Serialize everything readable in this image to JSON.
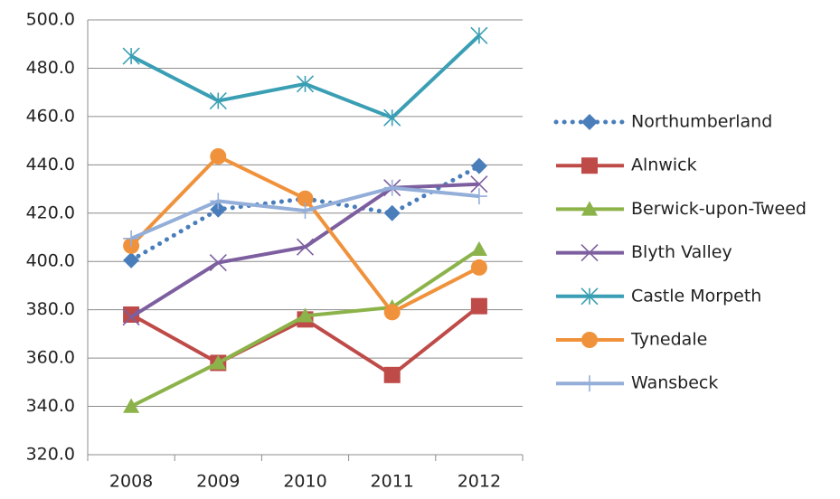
{
  "chart_data": {
    "type": "line",
    "categories": [
      "2008",
      "2009",
      "2010",
      "2011",
      "2012"
    ],
    "ylim": [
      320,
      500
    ],
    "yticks": [
      {
        "value": 320,
        "label": "320.0"
      },
      {
        "value": 340,
        "label": "340.0"
      },
      {
        "value": 360,
        "label": "360.0"
      },
      {
        "value": 380,
        "label": "380.0"
      },
      {
        "value": 400,
        "label": "400.0"
      },
      {
        "value": 420,
        "label": "420.0"
      },
      {
        "value": 440,
        "label": "440.0"
      },
      {
        "value": 460,
        "label": "460.0"
      },
      {
        "value": 480,
        "label": "480.0"
      },
      {
        "value": 500,
        "label": "500.0"
      }
    ],
    "grid": true,
    "legend": "right",
    "series": [
      {
        "name": "Northumberland",
        "color": "#4a7ebb",
        "marker": "diamond",
        "line_style": "dotted",
        "values": [
          400.5,
          421.5,
          426,
          420,
          439.5
        ]
      },
      {
        "name": "Alnwick",
        "color": "#be4b48",
        "marker": "square",
        "values": [
          378,
          358,
          376,
          353,
          381.5
        ]
      },
      {
        "name": "Berwick-upon-Tweed",
        "color": "#8cb34a",
        "marker": "triangle",
        "values": [
          340,
          358,
          377.5,
          381,
          405
        ]
      },
      {
        "name": "Blyth Valley",
        "color": "#7d5fa0",
        "marker": "x",
        "values": [
          377,
          399.5,
          406,
          430.5,
          432
        ]
      },
      {
        "name": "Castle Morpeth",
        "color": "#3a9fb4",
        "marker": "asterisk",
        "values": [
          485,
          466.5,
          473.5,
          459.5,
          493.5
        ]
      },
      {
        "name": "Tynedale",
        "color": "#f0923b",
        "marker": "circle",
        "values": [
          406.5,
          443.5,
          426,
          379,
          397.5
        ]
      },
      {
        "name": "Wansbeck",
        "color": "#93aed8",
        "marker": "plus",
        "values": [
          409.5,
          425,
          421,
          430.5,
          427
        ]
      }
    ]
  }
}
